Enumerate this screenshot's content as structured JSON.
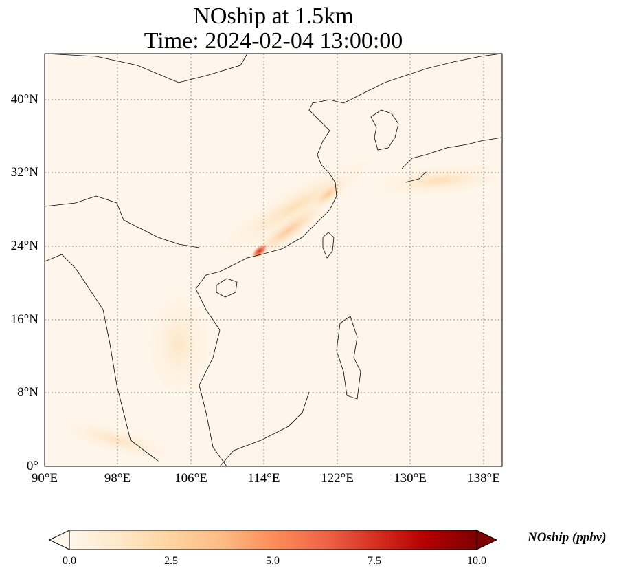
{
  "title": {
    "line1": "NOship at 1.5km",
    "line2": "Time: 2024-02-04 13:00:00"
  },
  "map": {
    "variable": "NOship",
    "level": "1.5km",
    "time": "2024-02-04 13:00:00",
    "extent": {
      "lon_min": 90,
      "lon_max": 140,
      "lat_min": 0,
      "lat_max": 45
    },
    "x_ticks": [
      "90°E",
      "98°E",
      "106°E",
      "114°E",
      "122°E",
      "130°E",
      "138°E"
    ],
    "y_ticks": [
      "0°",
      "8°N",
      "16°N",
      "24°N",
      "32°N",
      "40°N"
    ],
    "gridlines": "dotted",
    "peak_location": {
      "lon": 113.5,
      "lat": 23.0
    }
  },
  "colorbar": {
    "label": "NOship (ppbv)",
    "cmap": "OrRd",
    "min": 0.0,
    "max": 10.0,
    "ticks": [
      "0.0",
      "2.5",
      "5.0",
      "7.5",
      "10.0"
    ],
    "extend": "both",
    "colors": [
      "#fff7ec",
      "#fee8c8",
      "#fdd49e",
      "#fdbb84",
      "#fc8d59",
      "#ef6548",
      "#d7301f",
      "#b30000",
      "#7f0000"
    ]
  }
}
